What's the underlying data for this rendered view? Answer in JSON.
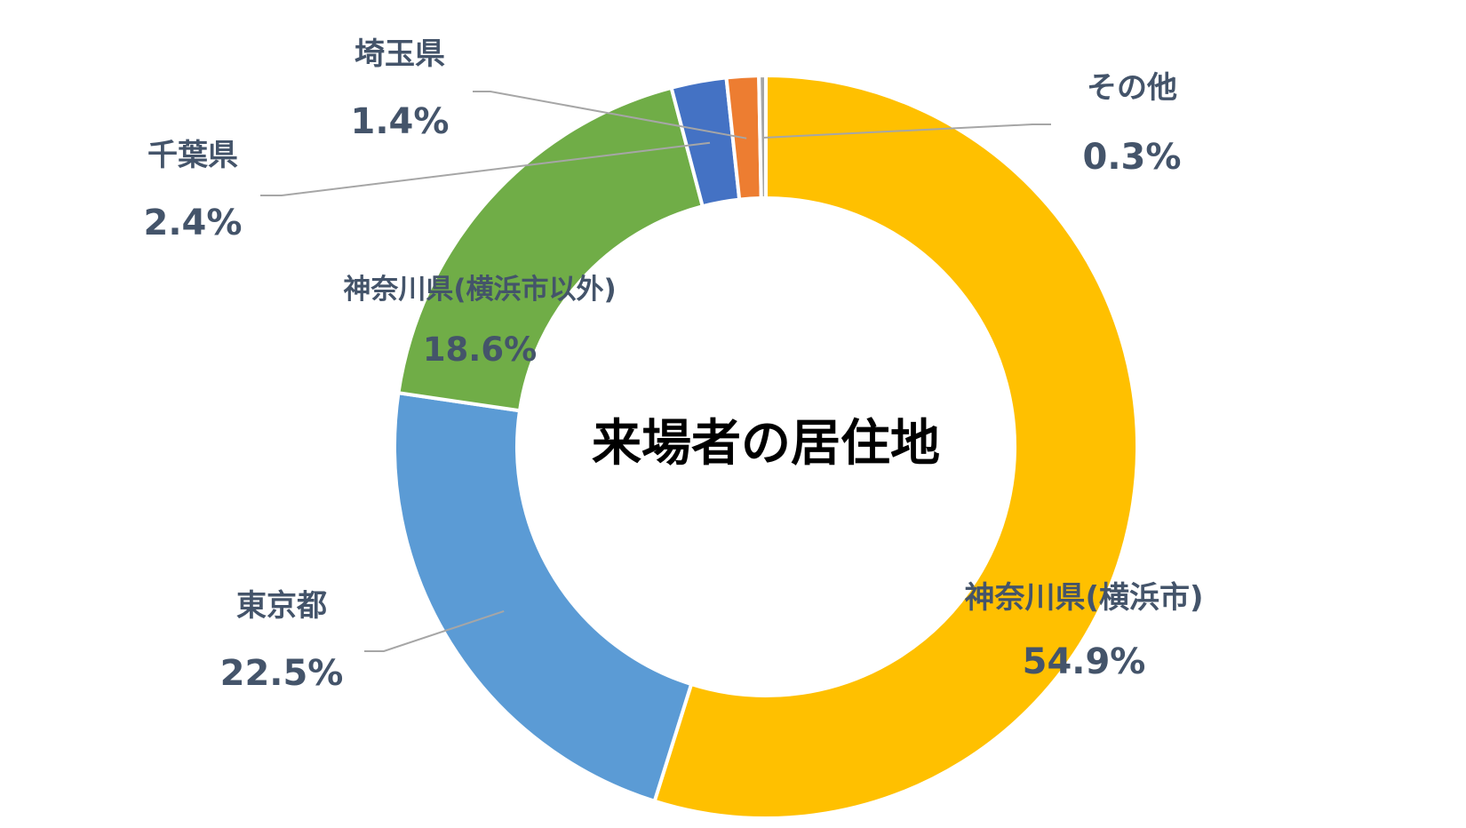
{
  "chart_data": {
    "type": "pie",
    "variant": "doughnut",
    "title": "来場者の居住地",
    "categories": [
      "神奈川県(横浜市)",
      "東京都",
      "神奈川県(横浜市以外)",
      "千葉県",
      "埼玉県",
      "その他"
    ],
    "values": [
      54.9,
      22.5,
      18.6,
      2.4,
      1.4,
      0.3
    ],
    "value_labels": [
      "54.9%",
      "22.5%",
      "18.6%",
      "2.4%",
      "1.4%",
      "0.3%"
    ],
    "colors": [
      "#FFC000",
      "#5B9BD5",
      "#70AD47",
      "#4472C4",
      "#ED7D31",
      "#A5A5A5"
    ],
    "unit": "%",
    "legend": "none",
    "data_labels": "category name and percentage"
  }
}
